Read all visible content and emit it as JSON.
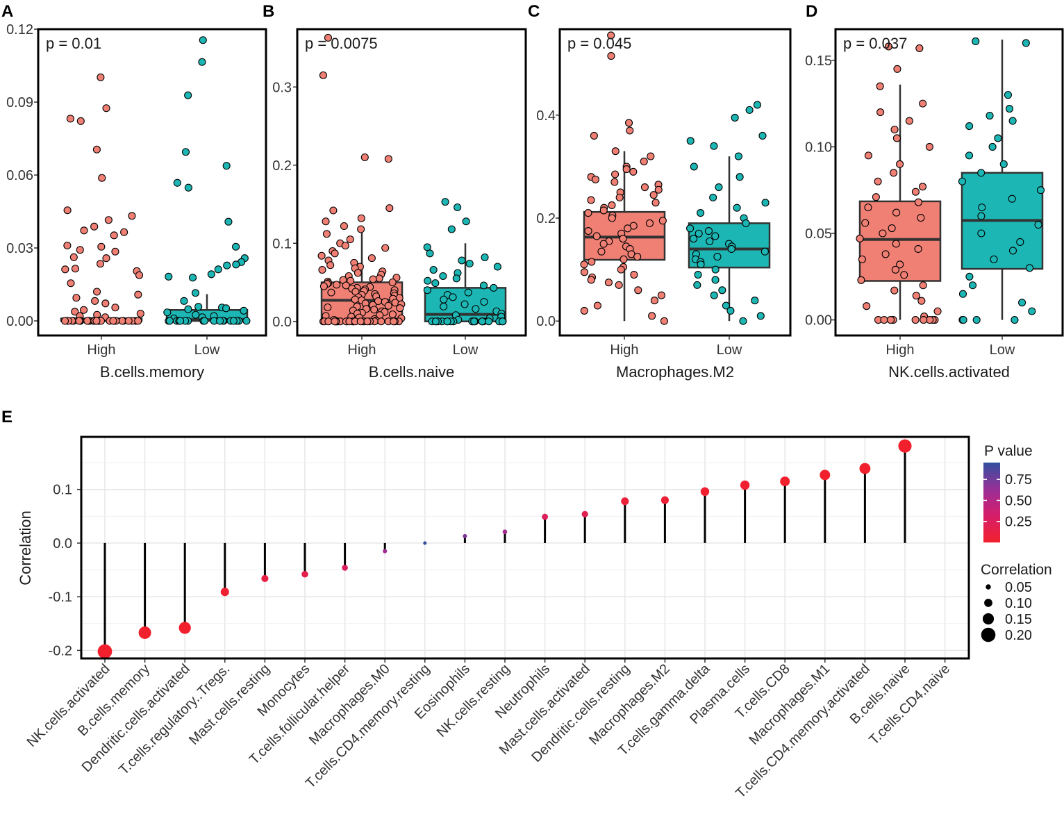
{
  "colors": {
    "high": "#F07F74",
    "low": "#1CB7B4",
    "box_line": "#333333",
    "pvalue_low": "#E8202A",
    "pvalue_mid": "#B3278F",
    "pvalue_high": "#3D4EA1"
  },
  "chart_data": [
    {
      "type": "box",
      "panel": "A",
      "title_p": "p = 0.01",
      "xlabel": "B.cells.memory",
      "categories": [
        "High",
        "Low"
      ],
      "ylim": [
        -0.006,
        0.12
      ],
      "yticks": [
        0.0,
        0.03,
        0.06,
        0.09,
        0.12
      ],
      "ytick_labels": [
        "0.00",
        "0.03",
        "0.06",
        "0.09",
        "0.12"
      ],
      "boxes": [
        {
          "group": "High",
          "q1": 0.0,
          "median": 0.0005,
          "q3": 0.001,
          "wlow": 0.0,
          "whigh": 0.0015
        },
        {
          "group": "Low",
          "q1": 0.0,
          "median": 0.0005,
          "q3": 0.0045,
          "wlow": 0.0,
          "whigh": 0.011
        }
      ],
      "points": [
        {
          "group": "High",
          "values": [
            0.1002,
            0.0875,
            0.0832,
            0.0822,
            0.0705,
            0.0588,
            0.0455,
            0.0432,
            0.0415,
            0.0388,
            0.0372,
            0.0365,
            0.0352,
            0.031,
            0.0305,
            0.0292,
            0.0285,
            0.0262,
            0.0258,
            0.0235,
            0.0215,
            0.0212,
            0.0205,
            0.0188,
            0.0155,
            0.012,
            0.0108,
            0.0095,
            0.0082,
            0.0072,
            0.0055,
            0.0045,
            0.0038,
            0.003,
            0.0025,
            0.002,
            0.0015,
            0.0,
            0.0,
            0.0,
            0.0,
            0.0,
            0.0,
            0.0,
            0.0,
            0.0,
            0.0,
            0.0,
            0.0,
            0.0,
            0.0,
            0.0,
            0.0,
            0.0,
            0.0,
            0.0,
            0.0,
            0.0,
            0.0,
            0.0,
            0.0,
            0.0,
            0.0,
            0.0,
            0.0,
            0.0
          ]
        },
        {
          "group": "Low",
          "values": [
            0.1155,
            0.1065,
            0.0928,
            0.0695,
            0.0638,
            0.0568,
            0.0548,
            0.0408,
            0.0305,
            0.0258,
            0.0242,
            0.0232,
            0.0228,
            0.0212,
            0.0192,
            0.0182,
            0.0178,
            0.0115,
            0.0082,
            0.0058,
            0.0055,
            0.0052,
            0.0048,
            0.0042,
            0.0035,
            0.0025,
            0.002,
            0.0015,
            0.001,
            0.0,
            0.0,
            0.0,
            0.0,
            0.0,
            0.0,
            0.0,
            0.0,
            0.0,
            0.0,
            0.0,
            0.0,
            0.0,
            0.0,
            0.0,
            0.0,
            0.0,
            0.0,
            0.0
          ]
        }
      ]
    },
    {
      "type": "box",
      "panel": "B",
      "title_p": "p = 0.0075",
      "xlabel": "B.cells.naive",
      "categories": [
        "High",
        "Low"
      ],
      "ylim": [
        -0.018,
        0.374
      ],
      "yticks": [
        0.0,
        0.1,
        0.2,
        0.3
      ],
      "ytick_labels": [
        "0.0",
        "0.1",
        "0.2",
        "0.3"
      ],
      "boxes": [
        {
          "group": "High",
          "q1": 0.0,
          "median": 0.027,
          "q3": 0.05,
          "wlow": 0.0,
          "whigh": 0.121
        },
        {
          "group": "Low",
          "q1": 0.0,
          "median": 0.009,
          "q3": 0.043,
          "wlow": 0.0,
          "whigh": 0.1
        }
      ],
      "points": [
        {
          "group": "High",
          "values": [
            0.363,
            0.315,
            0.21,
            0.208,
            0.145,
            0.142,
            0.132,
            0.128,
            0.122,
            0.118,
            0.112,
            0.105,
            0.1,
            0.097,
            0.094,
            0.09,
            0.087,
            0.084,
            0.081,
            0.078,
            0.075,
            0.072,
            0.07,
            0.068,
            0.066,
            0.064,
            0.062,
            0.06,
            0.058,
            0.056,
            0.055,
            0.054,
            0.053,
            0.052,
            0.051,
            0.05,
            0.049,
            0.048,
            0.047,
            0.046,
            0.045,
            0.044,
            0.043,
            0.042,
            0.041,
            0.04,
            0.039,
            0.038,
            0.037,
            0.036,
            0.035,
            0.034,
            0.033,
            0.032,
            0.031,
            0.03,
            0.029,
            0.028,
            0.027,
            0.026,
            0.025,
            0.024,
            0.023,
            0.022,
            0.021,
            0.02,
            0.019,
            0.018,
            0.017,
            0.016,
            0.015,
            0.014,
            0.013,
            0.012,
            0.011,
            0.01,
            0.009,
            0.008,
            0.007,
            0.006,
            0.005,
            0.004,
            0.003,
            0.002,
            0.001,
            0.0,
            0.0,
            0.0,
            0.0,
            0.0,
            0.0,
            0.0,
            0.0,
            0.0,
            0.0,
            0.0,
            0.0,
            0.0,
            0.0,
            0.0,
            0.0,
            0.0,
            0.0,
            0.0,
            0.0,
            0.0,
            0.0,
            0.0,
            0.0,
            0.0,
            0.0
          ]
        },
        {
          "group": "Low",
          "values": [
            0.153,
            0.146,
            0.128,
            0.118,
            0.095,
            0.087,
            0.082,
            0.078,
            0.074,
            0.07,
            0.066,
            0.062,
            0.058,
            0.055,
            0.052,
            0.049,
            0.046,
            0.043,
            0.04,
            0.037,
            0.034,
            0.031,
            0.028,
            0.025,
            0.022,
            0.019,
            0.016,
            0.013,
            0.01,
            0.008,
            0.006,
            0.004,
            0.002,
            0.0,
            0.0,
            0.0,
            0.0,
            0.0,
            0.0,
            0.0,
            0.0,
            0.0,
            0.0,
            0.0,
            0.0,
            0.0,
            0.0,
            0.0,
            0.0,
            0.0,
            0.0,
            0.0,
            0.0
          ]
        }
      ]
    },
    {
      "type": "box",
      "panel": "C",
      "title_p": "p = 0.045",
      "xlabel": "Macrophages.M2",
      "categories": [
        "High",
        "Low"
      ],
      "ylim": [
        -0.028,
        0.567
      ],
      "yticks": [
        0.0,
        0.2,
        0.4
      ],
      "ytick_labels": [
        "0.0",
        "0.2",
        "0.4"
      ],
      "boxes": [
        {
          "group": "High",
          "q1": 0.119,
          "median": 0.163,
          "q3": 0.212,
          "wlow": 0.0,
          "whigh": 0.33
        },
        {
          "group": "Low",
          "q1": 0.104,
          "median": 0.14,
          "q3": 0.19,
          "wlow": 0.0,
          "whigh": 0.32
        }
      ],
      "points": [
        {
          "group": "High",
          "values": [
            0.555,
            0.515,
            0.385,
            0.37,
            0.36,
            0.33,
            0.32,
            0.31,
            0.3,
            0.295,
            0.29,
            0.285,
            0.28,
            0.275,
            0.27,
            0.265,
            0.26,
            0.255,
            0.25,
            0.245,
            0.24,
            0.235,
            0.23,
            0.225,
            0.22,
            0.215,
            0.21,
            0.205,
            0.2,
            0.195,
            0.19,
            0.185,
            0.18,
            0.175,
            0.17,
            0.165,
            0.16,
            0.155,
            0.15,
            0.145,
            0.14,
            0.135,
            0.13,
            0.125,
            0.12,
            0.115,
            0.11,
            0.105,
            0.1,
            0.095,
            0.09,
            0.085,
            0.08,
            0.075,
            0.07,
            0.06,
            0.05,
            0.04,
            0.03,
            0.02,
            0.01,
            0.0
          ]
        },
        {
          "group": "Low",
          "values": [
            0.42,
            0.41,
            0.395,
            0.36,
            0.35,
            0.34,
            0.32,
            0.3,
            0.28,
            0.26,
            0.24,
            0.23,
            0.22,
            0.21,
            0.2,
            0.19,
            0.18,
            0.175,
            0.17,
            0.165,
            0.16,
            0.155,
            0.15,
            0.145,
            0.14,
            0.135,
            0.13,
            0.125,
            0.12,
            0.115,
            0.11,
            0.1,
            0.09,
            0.08,
            0.07,
            0.06,
            0.05,
            0.04,
            0.03,
            0.02,
            0.01,
            0.0
          ]
        }
      ]
    },
    {
      "type": "box",
      "panel": "D",
      "title_p": "p = 0.037",
      "xlabel": "NK.cells.activated",
      "categories": [
        "High",
        "Low"
      ],
      "ylim": [
        -0.009,
        0.168
      ],
      "yticks": [
        0.0,
        0.05,
        0.1,
        0.15
      ],
      "ytick_labels": [
        "0.00",
        "0.05",
        "0.10",
        "0.15"
      ],
      "boxes": [
        {
          "group": "High",
          "q1": 0.0225,
          "median": 0.0465,
          "q3": 0.0685,
          "wlow": 0.0,
          "whigh": 0.136
        },
        {
          "group": "Low",
          "q1": 0.0295,
          "median": 0.0575,
          "q3": 0.085,
          "wlow": 0.0,
          "whigh": 0.162
        }
      ],
      "points": [
        {
          "group": "High",
          "values": [
            0.158,
            0.157,
            0.145,
            0.135,
            0.125,
            0.12,
            0.115,
            0.11,
            0.105,
            0.1,
            0.095,
            0.09,
            0.085,
            0.08,
            0.077,
            0.074,
            0.071,
            0.068,
            0.065,
            0.062,
            0.059,
            0.056,
            0.053,
            0.05,
            0.047,
            0.044,
            0.041,
            0.038,
            0.035,
            0.032,
            0.029,
            0.026,
            0.023,
            0.02,
            0.017,
            0.014,
            0.011,
            0.008,
            0.005,
            0.002,
            0.0,
            0.0,
            0.0,
            0.0,
            0.0,
            0.0,
            0.0,
            0.0,
            0.0,
            0.0
          ]
        },
        {
          "group": "Low",
          "values": [
            0.161,
            0.16,
            0.13,
            0.122,
            0.118,
            0.115,
            0.112,
            0.105,
            0.1,
            0.095,
            0.09,
            0.085,
            0.08,
            0.075,
            0.07,
            0.065,
            0.06,
            0.055,
            0.05,
            0.045,
            0.04,
            0.035,
            0.03,
            0.025,
            0.02,
            0.015,
            0.01,
            0.005,
            0.0,
            0.0,
            0.0,
            0.0
          ]
        }
      ]
    },
    {
      "type": "lollipop",
      "panel": "E",
      "ylabel": "Correlation",
      "ylim": [
        -0.215,
        0.198
      ],
      "yticks": [
        -0.2,
        -0.1,
        0.0,
        0.1
      ],
      "ytick_labels": [
        "-0.2",
        "-0.1",
        "0.0",
        "0.1"
      ],
      "categories": [
        "NK.cells.activated",
        "B.cells.memory",
        "Dendritic.cells.activated",
        "T.cells.regulatory..Tregs.",
        "Mast.cells.resting",
        "Monocytes",
        "T.cells.follicular.helper",
        "Macrophages.M0",
        "T.cells.CD4.memory.resting",
        "Eosinophils",
        "NK.cells.resting",
        "Neutrophils",
        "Mast.cells.activated",
        "Dendritic.cells.resting",
        "Macrophages.M2",
        "T.cells.gamma.delta",
        "Plasma.cells",
        "T.cells.CD8",
        "Macrophages.M1",
        "T.cells.CD4.memory.activated",
        "B.cells.naive",
        "T.cells.CD4.naive"
      ],
      "correlation": [
        -0.202,
        -0.167,
        -0.158,
        -0.091,
        -0.066,
        -0.058,
        -0.046,
        -0.015,
        0.0,
        0.013,
        0.021,
        0.049,
        0.054,
        0.078,
        0.08,
        0.096,
        0.108,
        0.115,
        0.127,
        0.139,
        0.181,
        null
      ],
      "p_value": [
        0.0,
        0.001,
        0.002,
        0.03,
        0.12,
        0.17,
        0.27,
        0.62,
        0.99,
        0.75,
        0.6,
        0.25,
        0.2,
        0.07,
        0.06,
        0.02,
        0.01,
        0.007,
        0.003,
        0.001,
        0.0,
        null
      ],
      "legend": {
        "pvalue_title": "P value",
        "pvalue_ticks": [
          0.75,
          0.5,
          0.25
        ],
        "pvalue_tick_labels": [
          "0.75",
          "0.50",
          "0.25"
        ],
        "size_title": "Correlation",
        "size_values": [
          0.05,
          0.1,
          0.15,
          0.2
        ],
        "size_labels": [
          "0.05",
          "0.10",
          "0.15",
          "0.20"
        ]
      }
    }
  ]
}
